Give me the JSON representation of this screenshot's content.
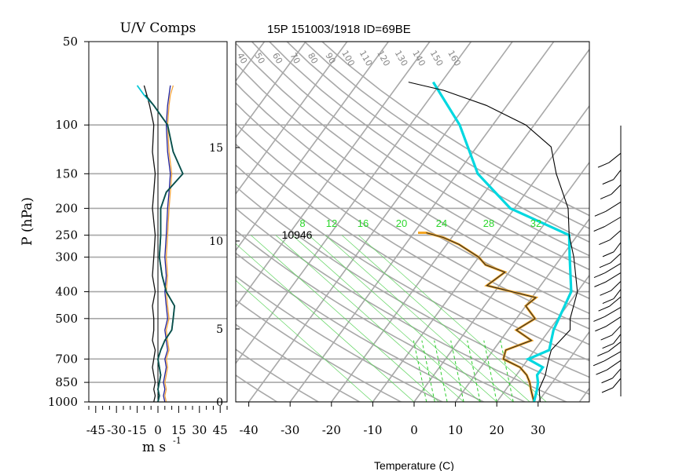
{
  "chart_data": [
    {
      "type": "line",
      "panel": "U/V Comps",
      "title": "U/V Comps",
      "xlabel": "m s",
      "xlabel_exp": "-1",
      "ylabel": "P (hPa)",
      "xlim": [
        -50,
        50
      ],
      "ylim": [
        1000,
        50
      ],
      "y_scale": "log",
      "x_ticks": [
        -45,
        -30,
        -15,
        0,
        15,
        30,
        45
      ],
      "x_tick_labels": [
        "-45",
        "-30",
        "-15",
        "0",
        "15",
        "30",
        "45"
      ],
      "y_ticks": [
        50,
        100,
        150,
        200,
        250,
        300,
        400,
        500,
        700,
        850,
        1000
      ],
      "y_tick_labels": [
        "50",
        "100",
        "150",
        "200",
        "250",
        "300",
        "400",
        "500",
        "700",
        "850",
        "1000"
      ],
      "grid": true,
      "series": [
        {
          "color": "#111111",
          "points": [
            [
              -3,
              1000
            ],
            [
              -2,
              950
            ],
            [
              -3,
              900
            ],
            [
              -2,
              850
            ],
            [
              -3,
              800
            ],
            [
              -4,
              750
            ],
            [
              -3,
              700
            ],
            [
              -2,
              650
            ],
            [
              -4,
              600
            ],
            [
              -3,
              550
            ],
            [
              -3,
              500
            ],
            [
              -4,
              450
            ],
            [
              -2,
              400
            ],
            [
              -4,
              350
            ],
            [
              -3,
              300
            ],
            [
              -2,
              250
            ],
            [
              -4,
              200
            ],
            [
              -3,
              175
            ],
            [
              -2,
              150
            ],
            [
              -4,
              125
            ],
            [
              -3,
              100
            ],
            [
              -6,
              85
            ],
            [
              -8,
              78
            ],
            [
              -10,
              72
            ]
          ]
        },
        {
          "color": "#f4a43c",
          "points": [
            [
              6,
              1000
            ],
            [
              5,
              950
            ],
            [
              6,
              900
            ],
            [
              5,
              850
            ],
            [
              6,
              800
            ],
            [
              7,
              750
            ],
            [
              6,
              700
            ],
            [
              8,
              650
            ],
            [
              7,
              600
            ],
            [
              6,
              550
            ],
            [
              8,
              500
            ],
            [
              7,
              450
            ],
            [
              6,
              400
            ],
            [
              7,
              350
            ],
            [
              6,
              300
            ],
            [
              7,
              250
            ],
            [
              8,
              200
            ],
            [
              9,
              175
            ],
            [
              10,
              150
            ],
            [
              8,
              125
            ],
            [
              7,
              100
            ],
            [
              8,
              85
            ],
            [
              9,
              78
            ],
            [
              11,
              72
            ]
          ]
        },
        {
          "color": "#222299",
          "points": [
            [
              5,
              1000
            ],
            [
              4,
              950
            ],
            [
              5,
              900
            ],
            [
              4,
              850
            ],
            [
              5,
              800
            ],
            [
              6,
              750
            ],
            [
              5,
              700
            ],
            [
              7,
              650
            ],
            [
              6,
              600
            ],
            [
              5,
              550
            ],
            [
              7,
              500
            ],
            [
              6,
              450
            ],
            [
              5,
              400
            ],
            [
              6,
              350
            ],
            [
              5,
              300
            ],
            [
              6,
              250
            ],
            [
              7,
              200
            ],
            [
              8,
              175
            ],
            [
              9,
              150
            ],
            [
              7,
              125
            ],
            [
              6,
              100
            ],
            [
              7,
              85
            ],
            [
              8,
              78
            ],
            [
              9,
              72
            ]
          ]
        },
        {
          "color": "#00c8d8",
          "points": [
            [
              0,
              1000
            ],
            [
              1,
              950
            ],
            [
              0,
              900
            ],
            [
              1,
              850
            ],
            [
              2,
              800
            ],
            [
              1,
              750
            ],
            [
              0,
              700
            ],
            [
              2,
              650
            ],
            [
              5,
              600
            ],
            [
              10,
              550
            ],
            [
              11,
              500
            ],
            [
              12,
              450
            ],
            [
              6,
              400
            ],
            [
              3,
              350
            ],
            [
              1,
              300
            ],
            [
              2,
              250
            ],
            [
              2,
              200
            ],
            [
              6,
              175
            ],
            [
              18,
              150
            ],
            [
              11,
              125
            ],
            [
              7,
              100
            ],
            [
              -3,
              85
            ],
            [
              -10,
              78
            ],
            [
              -15,
              72
            ]
          ]
        },
        {
          "color": "#0f4b46",
          "points": [
            [
              0,
              1000
            ],
            [
              1,
              950
            ],
            [
              0,
              900
            ],
            [
              1,
              850
            ],
            [
              2,
              800
            ],
            [
              1,
              750
            ],
            [
              0,
              700
            ],
            [
              2,
              650
            ],
            [
              5,
              600
            ],
            [
              10,
              550
            ],
            [
              11,
              500
            ],
            [
              12,
              450
            ],
            [
              6,
              400
            ],
            [
              3,
              350
            ],
            [
              1,
              300
            ],
            [
              2,
              250
            ],
            [
              2,
              200
            ],
            [
              6,
              175
            ],
            [
              18,
              150
            ],
            [
              11,
              125
            ],
            [
              7,
              100
            ],
            [
              -3,
              85
            ],
            [
              -9,
              78
            ]
          ]
        }
      ]
    },
    {
      "type": "line",
      "panel": "skew-T",
      "title": "15P 151003/1918 ID=69BE",
      "xlabel": "Temperature (C)",
      "ylabel": "",
      "xlim": [
        -45,
        38
      ],
      "ylim": [
        1000,
        50
      ],
      "x_ticks": [
        -40,
        -30,
        -20,
        -10,
        0,
        10,
        20,
        30
      ],
      "x_tick_labels": [
        "-40",
        "-30",
        "-20",
        "-10",
        "0",
        "10",
        "20",
        "30"
      ],
      "height_ticks_km": [
        0,
        5,
        10,
        15
      ],
      "height_tick_labels": [
        "0",
        "5",
        "10",
        "15"
      ],
      "theta_labels": [
        "40",
        "50",
        "60",
        "70",
        "80",
        "90",
        "100",
        "110",
        "120",
        "130",
        "140",
        "150",
        "160"
      ],
      "mixing_ratio_labels": [
        "8",
        "12",
        "16",
        "20",
        "24",
        "28",
        "32"
      ],
      "annotation": "10946",
      "series": [
        {
          "color": "#f5a623",
          "points": [
            [
              29.0,
              1000
            ],
            [
              26.0,
              900
            ],
            [
              24.5,
              850
            ],
            [
              22.5,
              800
            ],
            [
              19.5,
              750
            ],
            [
              14.0,
              700
            ],
            [
              13.0,
              650
            ],
            [
              17.5,
              600
            ],
            [
              12.0,
              550
            ],
            [
              14.5,
              500
            ],
            [
              10.0,
              450
            ],
            [
              11.0,
              420
            ],
            [
              -3.0,
              380
            ],
            [
              -1.0,
              340
            ],
            [
              -7.0,
              320
            ],
            [
              -10.0,
              300
            ],
            [
              -17.0,
              270
            ],
            [
              -22.0,
              255
            ],
            [
              -27.0,
              245
            ],
            [
              -29.0,
              245
            ]
          ]
        },
        {
          "color": "#2a2a2a",
          "points": [
            [
              29.0,
              1000
            ],
            [
              26.0,
              900
            ],
            [
              24.5,
              850
            ],
            [
              22.5,
              800
            ],
            [
              19.5,
              750
            ],
            [
              14.0,
              700
            ],
            [
              13.0,
              650
            ],
            [
              17.5,
              600
            ],
            [
              12.0,
              550
            ],
            [
              14.5,
              500
            ],
            [
              10.0,
              450
            ],
            [
              11.0,
              420
            ],
            [
              -3.0,
              380
            ],
            [
              -1.0,
              340
            ],
            [
              -7.0,
              320
            ],
            [
              -10.0,
              300
            ],
            [
              -17.0,
              270
            ],
            [
              -22.0,
              255
            ],
            [
              -27.0,
              245
            ]
          ]
        },
        {
          "color": "#00d8e0",
          "points": [
            [
              29.0,
              1000
            ],
            [
              27.5,
              900
            ],
            [
              26.5,
              850
            ],
            [
              25.0,
              800
            ],
            [
              25.0,
              750
            ],
            [
              20.0,
              700
            ],
            [
              23.5,
              650
            ],
            [
              21.0,
              550
            ],
            [
              18.5,
              400
            ],
            [
              12.0,
              300
            ],
            [
              8.0,
              250
            ],
            [
              -11.0,
              200
            ],
            [
              -25.0,
              150
            ],
            [
              -38.0,
              100
            ],
            [
              -52.0,
              70
            ]
          ]
        },
        {
          "color": "#000000",
          "points": [
            [
              30.5,
              1000
            ],
            [
              28.0,
              900
            ],
            [
              27.5,
              850
            ],
            [
              27.0,
              800
            ],
            [
              26.0,
              750
            ],
            [
              25.0,
              700
            ],
            [
              24.0,
              650
            ],
            [
              25.0,
              550
            ],
            [
              23.0,
              500
            ],
            [
              20.0,
              400
            ],
            [
              13.0,
              300
            ],
            [
              8.0,
              250
            ],
            [
              3.0,
              200
            ],
            [
              -6.0,
              150
            ],
            [
              -12.0,
              120
            ],
            [
              -22.0,
              100
            ],
            [
              -35.0,
              85
            ],
            [
              -48.0,
              75
            ],
            [
              -58.0,
              70
            ]
          ]
        }
      ]
    }
  ]
}
